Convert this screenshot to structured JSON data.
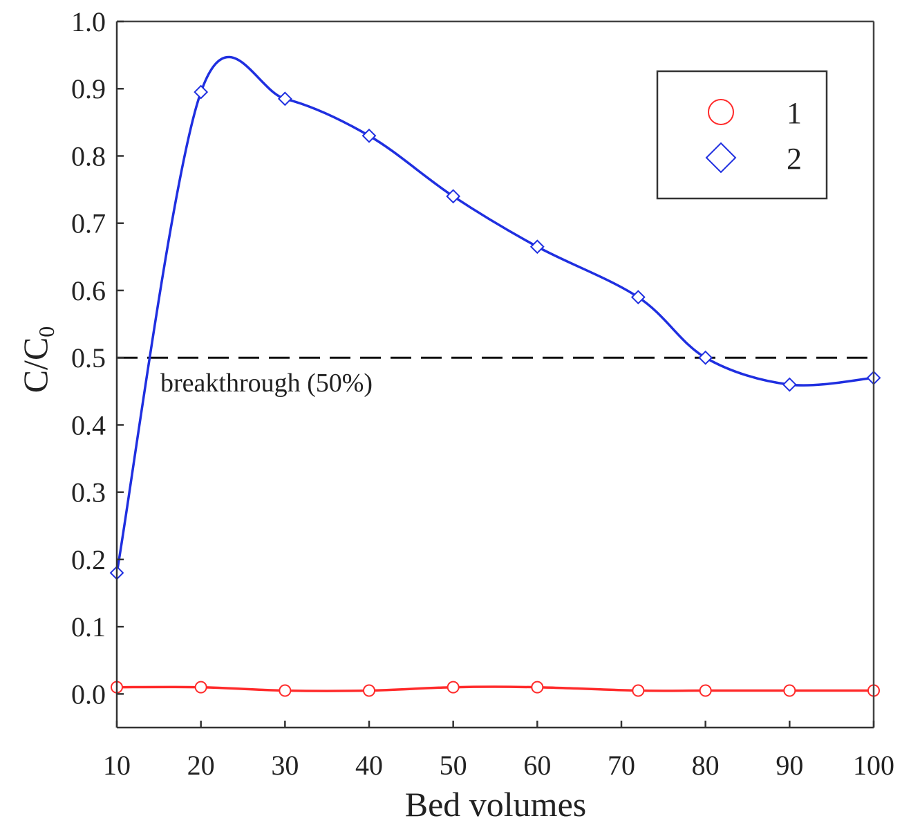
{
  "chart_data": {
    "type": "line",
    "xlabel": "Bed volumes",
    "ylabel": "C/C",
    "ylabel_sub": "0",
    "xlim": [
      10,
      100
    ],
    "ylim": [
      -0.05,
      1.0
    ],
    "xticks": [
      "10",
      "20",
      "30",
      "40",
      "50",
      "60",
      "70",
      "80",
      "90",
      "100"
    ],
    "xtick_values": [
      10,
      20,
      30,
      40,
      50,
      60,
      70,
      80,
      90,
      100
    ],
    "yticks": [
      "0.0",
      "0.1",
      "0.2",
      "0.3",
      "0.4",
      "0.5",
      "0.6",
      "0.7",
      "0.8",
      "0.9",
      "1.0"
    ],
    "ytick_values": [
      0.0,
      0.1,
      0.2,
      0.3,
      0.4,
      0.5,
      0.6,
      0.7,
      0.8,
      0.9,
      1.0
    ],
    "grid": false,
    "legend_position": "top-right",
    "reference_line": {
      "y": 0.5,
      "label": "breakthrough (50%)",
      "style": "dashed",
      "color": "#111111"
    },
    "series": [
      {
        "name": "1",
        "marker": "circle",
        "color": "#ff2a2a",
        "x": [
          10,
          20,
          30,
          40,
          50,
          60,
          72,
          80,
          90,
          100
        ],
        "y": [
          0.01,
          0.01,
          0.005,
          0.005,
          0.01,
          0.01,
          0.005,
          0.005,
          0.005,
          0.005
        ]
      },
      {
        "name": "2",
        "marker": "diamond",
        "color": "#1f2fe0",
        "x": [
          10,
          20,
          30,
          40,
          50,
          60,
          72,
          80,
          90,
          100
        ],
        "y": [
          0.18,
          0.895,
          0.885,
          0.83,
          0.74,
          0.665,
          0.59,
          0.5,
          0.46,
          0.47
        ]
      }
    ]
  }
}
